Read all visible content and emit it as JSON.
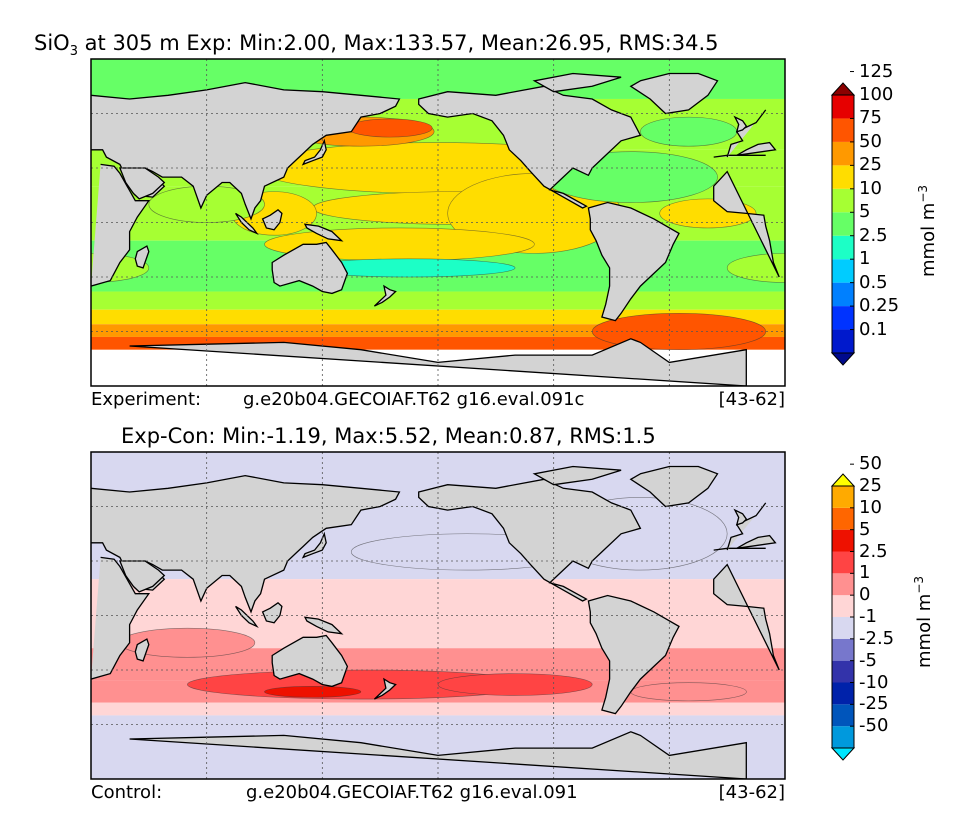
{
  "chart_data": [
    {
      "type": "heatmap",
      "panel": "experiment",
      "variable": "SiO3",
      "title_prefix": "SiO",
      "title_sub": "3",
      "title_rest": " at 305 m Exp: Min:2.00, Max:133.57, Mean:26.95, RMS:34.5",
      "stats": {
        "min": 2.0,
        "max": 133.57,
        "mean": 26.95,
        "rms": 34.5
      },
      "footer": {
        "label": "Experiment:",
        "run": "g.e20b04.GECOIAF.T62 g16.eval.091c",
        "years": "[43-62]"
      },
      "colorbar": {
        "levels": [
          "0.1",
          "0.25",
          "0.5",
          "1",
          "2.5",
          "5",
          "10",
          "25",
          "50",
          "75",
          "100",
          "125"
        ],
        "colors": [
          "#000a8c",
          "#0019cc",
          "#0033ff",
          "#0080ff",
          "#00ccff",
          "#1cffc6",
          "#66ff66",
          "#a6ff33",
          "#ffdd00",
          "#ff9900",
          "#ff5500",
          "#e60000",
          "#8c0000"
        ],
        "units_main": "mmol m",
        "units_sup": "−3"
      },
      "bands": [
        {
          "lat0": 90,
          "lat1": 68,
          "level": 6
        },
        {
          "lat0": 68,
          "lat1": 40,
          "level": 7
        },
        {
          "lat0": 40,
          "lat1": 20,
          "level": 7
        },
        {
          "lat0": 20,
          "lat1": -10,
          "level": 7
        },
        {
          "lat0": -10,
          "lat1": -38,
          "level": 6
        },
        {
          "lat0": -38,
          "lat1": -48,
          "level": 7
        },
        {
          "lat0": -48,
          "lat1": -56,
          "level": 8
        },
        {
          "lat0": -56,
          "lat1": -63,
          "level": 9
        },
        {
          "lat0": -63,
          "lat1": -70,
          "level": 10
        }
      ],
      "blobs": [
        {
          "lon": 200,
          "lat": 30,
          "rlon": 95,
          "rlat": 14,
          "level": 8
        },
        {
          "lon": 210,
          "lat": 8,
          "rlon": 75,
          "rlat": 9,
          "level": 8
        },
        {
          "lon": 250,
          "lat": 5,
          "rlon": 45,
          "rlat": 22,
          "level": 8
        },
        {
          "lon": 180,
          "lat": -12,
          "rlon": 70,
          "rlat": 9,
          "level": 8
        },
        {
          "lon": 115,
          "lat": 5,
          "rlon": 22,
          "rlat": 12,
          "level": 8
        },
        {
          "lon": 160,
          "lat": 50,
          "rlon": 38,
          "rlat": 8,
          "level": 9
        },
        {
          "lon": 175,
          "lat": 52,
          "rlon": 22,
          "rlat": 5,
          "level": 10
        },
        {
          "lon": 185,
          "lat": -25,
          "rlon": 55,
          "rlat": 5,
          "level": 5
        },
        {
          "lon": 80,
          "lat": 10,
          "rlon": 30,
          "rlat": 10,
          "level": 7
        },
        {
          "lon": 300,
          "lat": 25,
          "rlon": 45,
          "rlat": 14,
          "level": 6
        },
        {
          "lon": 330,
          "lat": 50,
          "rlon": 25,
          "rlat": 8,
          "level": 6
        },
        {
          "lon": 20,
          "lat": -25,
          "rlon": 30,
          "rlat": 8,
          "level": 7
        },
        {
          "lon": 325,
          "lat": -60,
          "rlon": 45,
          "rlat": 10,
          "level": 10
        },
        {
          "lon": 340,
          "lat": 5,
          "rlon": 25,
          "rlat": 8,
          "level": 8
        }
      ]
    },
    {
      "type": "heatmap",
      "panel": "difference",
      "title": "Exp-Con: Min:-1.19, Max:5.52, Mean:0.87, RMS:1.5",
      "stats": {
        "min": -1.19,
        "max": 5.52,
        "mean": 0.87,
        "rms": 1.5
      },
      "footer": {
        "label": "Control:",
        "run": "g.e20b04.GECOIAF.T62 g16.eval.091",
        "years": "[43-62]"
      },
      "colorbar": {
        "levels": [
          "-50",
          "-25",
          "-10",
          "-5",
          "-2.5",
          "-1",
          "0",
          "1",
          "2.5",
          "5",
          "10",
          "25",
          "50"
        ],
        "colors": [
          "#00e5ff",
          "#0099dd",
          "#0055bb",
          "#0022aa",
          "#3333aa",
          "#7777cc",
          "#d8d8f0",
          "#ffd6d6",
          "#ff9090",
          "#ff4444",
          "#ee1100",
          "#ff6600",
          "#ffaa00",
          "#ffff00"
        ],
        "units_main": "mmol m",
        "units_sup": "−3"
      },
      "bands": [
        {
          "lat0": 90,
          "lat1": 20,
          "level": 6
        },
        {
          "lat0": 20,
          "lat1": -18,
          "level": 7
        },
        {
          "lat0": -18,
          "lat1": -36,
          "level": 8
        },
        {
          "lat0": -36,
          "lat1": -48,
          "level": 8
        },
        {
          "lat0": -48,
          "lat1": -55,
          "level": 7
        },
        {
          "lat0": -55,
          "lat1": -90,
          "level": 6
        }
      ],
      "blobs": [
        {
          "lon": 215,
          "lat": 35,
          "rlon": 60,
          "rlat": 10,
          "level": 6
        },
        {
          "lon": 305,
          "lat": 45,
          "rlon": 45,
          "rlat": 20,
          "level": 6
        },
        {
          "lon": 160,
          "lat": -38,
          "rlon": 90,
          "rlat": 8,
          "level": 9
        },
        {
          "lon": 240,
          "lat": -38,
          "rlon": 40,
          "rlat": 6,
          "level": 9
        },
        {
          "lon": 135,
          "lat": -42,
          "rlon": 25,
          "rlat": 3,
          "level": 10
        },
        {
          "lon": 330,
          "lat": -42,
          "rlon": 30,
          "rlat": 5,
          "level": 8
        },
        {
          "lon": 70,
          "lat": -15,
          "rlon": 35,
          "rlat": 8,
          "level": 8
        }
      ]
    }
  ],
  "land": [
    {
      "name": "north-america",
      "pts": [
        [
          190,
          68
        ],
        [
          205,
          72
        ],
        [
          230,
          70
        ],
        [
          255,
          75
        ],
        [
          265,
          70
        ],
        [
          280,
          68
        ],
        [
          290,
          62
        ],
        [
          300,
          58
        ],
        [
          305,
          48
        ],
        [
          295,
          45
        ],
        [
          285,
          35
        ],
        [
          280,
          30
        ],
        [
          278,
          26
        ],
        [
          270,
          30
        ],
        [
          262,
          22
        ],
        [
          258,
          18
        ],
        [
          265,
          16
        ],
        [
          277,
          9
        ],
        [
          275,
          8
        ],
        [
          265,
          14
        ],
        [
          255,
          20
        ],
        [
          248,
          28
        ],
        [
          243,
          34
        ],
        [
          237,
          40
        ],
        [
          234,
          48
        ],
        [
          228,
          56
        ],
        [
          218,
          60
        ],
        [
          205,
          58
        ],
        [
          195,
          60
        ],
        [
          190,
          65
        ]
      ]
    },
    {
      "name": "south-america",
      "pts": [
        [
          278,
          8
        ],
        [
          288,
          11
        ],
        [
          300,
          8
        ],
        [
          312,
          2
        ],
        [
          325,
          -6
        ],
        [
          322,
          -12
        ],
        [
          318,
          -22
        ],
        [
          312,
          -28
        ],
        [
          305,
          -35
        ],
        [
          300,
          -42
        ],
        [
          295,
          -50
        ],
        [
          292,
          -54
        ],
        [
          285,
          -52
        ],
        [
          287,
          -45
        ],
        [
          289,
          -35
        ],
        [
          289,
          -25
        ],
        [
          285,
          -18
        ],
        [
          282,
          -10
        ],
        [
          279,
          -4
        ],
        [
          279,
          2
        ]
      ]
    },
    {
      "name": "greenland",
      "pts": [
        [
          305,
          78
        ],
        [
          320,
          82
        ],
        [
          335,
          82
        ],
        [
          345,
          78
        ],
        [
          340,
          70
        ],
        [
          330,
          62
        ],
        [
          318,
          60
        ],
        [
          310,
          68
        ],
        [
          300,
          75
        ]
      ]
    },
    {
      "name": "africa",
      "pts": [
        [
          343,
          36
        ],
        [
          350,
          37
        ],
        [
          10,
          37
        ],
        [
          25,
          32
        ],
        [
          32,
          31
        ],
        [
          35,
          27
        ],
        [
          43,
          12
        ],
        [
          50,
          12
        ],
        [
          44,
          3
        ],
        [
          40,
          -5
        ],
        [
          40,
          -15
        ],
        [
          35,
          -22
        ],
        [
          30,
          -32
        ],
        [
          20,
          -35
        ],
        [
          17,
          -30
        ],
        [
          14,
          -22
        ],
        [
          12,
          -10
        ],
        [
          10,
          -2
        ],
        [
          9,
          4
        ],
        [
          0,
          5
        ],
        [
          350,
          6
        ],
        [
          343,
          12
        ],
        [
          343,
          20
        ],
        [
          350,
          28
        ]
      ]
    },
    {
      "name": "eurasia",
      "pts": [
        [
          350,
          36
        ],
        [
          352,
          43
        ],
        [
          358,
          45
        ],
        [
          355,
          50
        ],
        [
          5,
          55
        ],
        [
          10,
          62
        ],
        [
          20,
          70
        ],
        [
          40,
          68
        ],
        [
          60,
          70
        ],
        [
          80,
          73
        ],
        [
          100,
          77
        ],
        [
          120,
          73
        ],
        [
          140,
          72
        ],
        [
          160,
          70
        ],
        [
          180,
          68
        ],
        [
          178,
          64
        ],
        [
          170,
          60
        ],
        [
          160,
          58
        ],
        [
          155,
          50
        ],
        [
          142,
          48
        ],
        [
          135,
          43
        ],
        [
          130,
          38
        ],
        [
          127,
          35
        ],
        [
          122,
          30
        ],
        [
          120,
          25
        ],
        [
          110,
          20
        ],
        [
          108,
          12
        ],
        [
          105,
          8
        ],
        [
          103,
          2
        ],
        [
          100,
          10
        ],
        [
          98,
          16
        ],
        [
          92,
          22
        ],
        [
          88,
          22
        ],
        [
          80,
          15
        ],
        [
          77,
          8
        ],
        [
          73,
          20
        ],
        [
          67,
          25
        ],
        [
          57,
          25
        ],
        [
          52,
          28
        ],
        [
          48,
          30
        ],
        [
          58,
          20
        ],
        [
          52,
          14
        ],
        [
          43,
          15
        ],
        [
          35,
          32
        ],
        [
          28,
          36
        ],
        [
          26,
          40
        ],
        [
          20,
          40
        ],
        [
          15,
          40
        ],
        [
          12,
          44
        ],
        [
          6,
          43
        ],
        [
          0,
          40
        ],
        [
          355,
          37
        ]
      ]
    },
    {
      "name": "arabia",
      "pts": [
        [
          35,
          30
        ],
        [
          48,
          30
        ],
        [
          55,
          25
        ],
        [
          58,
          22
        ],
        [
          52,
          16
        ],
        [
          45,
          13
        ],
        [
          42,
          16
        ],
        [
          38,
          22
        ]
      ]
    },
    {
      "name": "australia",
      "pts": [
        [
          114,
          -22
        ],
        [
          120,
          -18
        ],
        [
          130,
          -12
        ],
        [
          137,
          -12
        ],
        [
          142,
          -11
        ],
        [
          145,
          -15
        ],
        [
          150,
          -22
        ],
        [
          153,
          -28
        ],
        [
          150,
          -37
        ],
        [
          145,
          -39
        ],
        [
          140,
          -38
        ],
        [
          135,
          -35
        ],
        [
          128,
          -32
        ],
        [
          118,
          -35
        ],
        [
          115,
          -33
        ],
        [
          114,
          -26
        ]
      ]
    },
    {
      "name": "antarctica",
      "pts": [
        [
          0,
          -70
        ],
        [
          40,
          -68
        ],
        [
          80,
          -67
        ],
        [
          120,
          -66
        ],
        [
          160,
          -70
        ],
        [
          200,
          -77
        ],
        [
          240,
          -73
        ],
        [
          280,
          -73
        ],
        [
          300,
          -64
        ],
        [
          305,
          -66
        ],
        [
          320,
          -77
        ],
        [
          359.9,
          -70
        ],
        [
          359.9,
          -90
        ],
        [
          0,
          -90
        ]
      ]
    },
    {
      "name": "borneo",
      "pts": [
        [
          109,
          2
        ],
        [
          113,
          4
        ],
        [
          117,
          7
        ],
        [
          119,
          5
        ],
        [
          118,
          0
        ],
        [
          115,
          -4
        ],
        [
          111,
          -3
        ]
      ]
    },
    {
      "name": "sumatra",
      "pts": [
        [
          95,
          5
        ],
        [
          98,
          3
        ],
        [
          104,
          -3
        ],
        [
          106,
          -6
        ],
        [
          102,
          -4
        ],
        [
          98,
          0
        ]
      ]
    },
    {
      "name": "new-guinea",
      "pts": [
        [
          131,
          -1
        ],
        [
          138,
          -2
        ],
        [
          145,
          -5
        ],
        [
          150,
          -10
        ],
        [
          143,
          -9
        ],
        [
          137,
          -6
        ],
        [
          132,
          -3
        ]
      ]
    },
    {
      "name": "japan",
      "pts": [
        [
          130,
          32
        ],
        [
          135,
          34
        ],
        [
          140,
          36
        ],
        [
          142,
          40
        ],
        [
          141,
          45
        ],
        [
          139,
          40
        ],
        [
          136,
          36
        ],
        [
          131,
          34
        ]
      ]
    },
    {
      "name": "madagascar",
      "pts": [
        [
          44,
          -16
        ],
        [
          49,
          -13
        ],
        [
          50,
          -16
        ],
        [
          47,
          -25
        ],
        [
          44,
          -24
        ],
        [
          43,
          -20
        ]
      ]
    },
    {
      "name": "new-zealand",
      "pts": [
        [
          172,
          -35
        ],
        [
          175,
          -37
        ],
        [
          178,
          -38
        ],
        [
          175,
          -41
        ],
        [
          171,
          -44
        ],
        [
          167,
          -46
        ],
        [
          170,
          -43
        ],
        [
          173,
          -40
        ]
      ]
    },
    {
      "name": "uk",
      "pts": [
        [
          355,
          50
        ],
        [
          358,
          51
        ],
        [
          0,
          53
        ],
        [
          358,
          56
        ],
        [
          354,
          58
        ],
        [
          356,
          54
        ]
      ]
    },
    {
      "name": "arctic-islands",
      "pts": [
        [
          260,
          72
        ],
        [
          280,
          75
        ],
        [
          295,
          80
        ],
        [
          270,
          82
        ],
        [
          250,
          78
        ]
      ]
    }
  ]
}
